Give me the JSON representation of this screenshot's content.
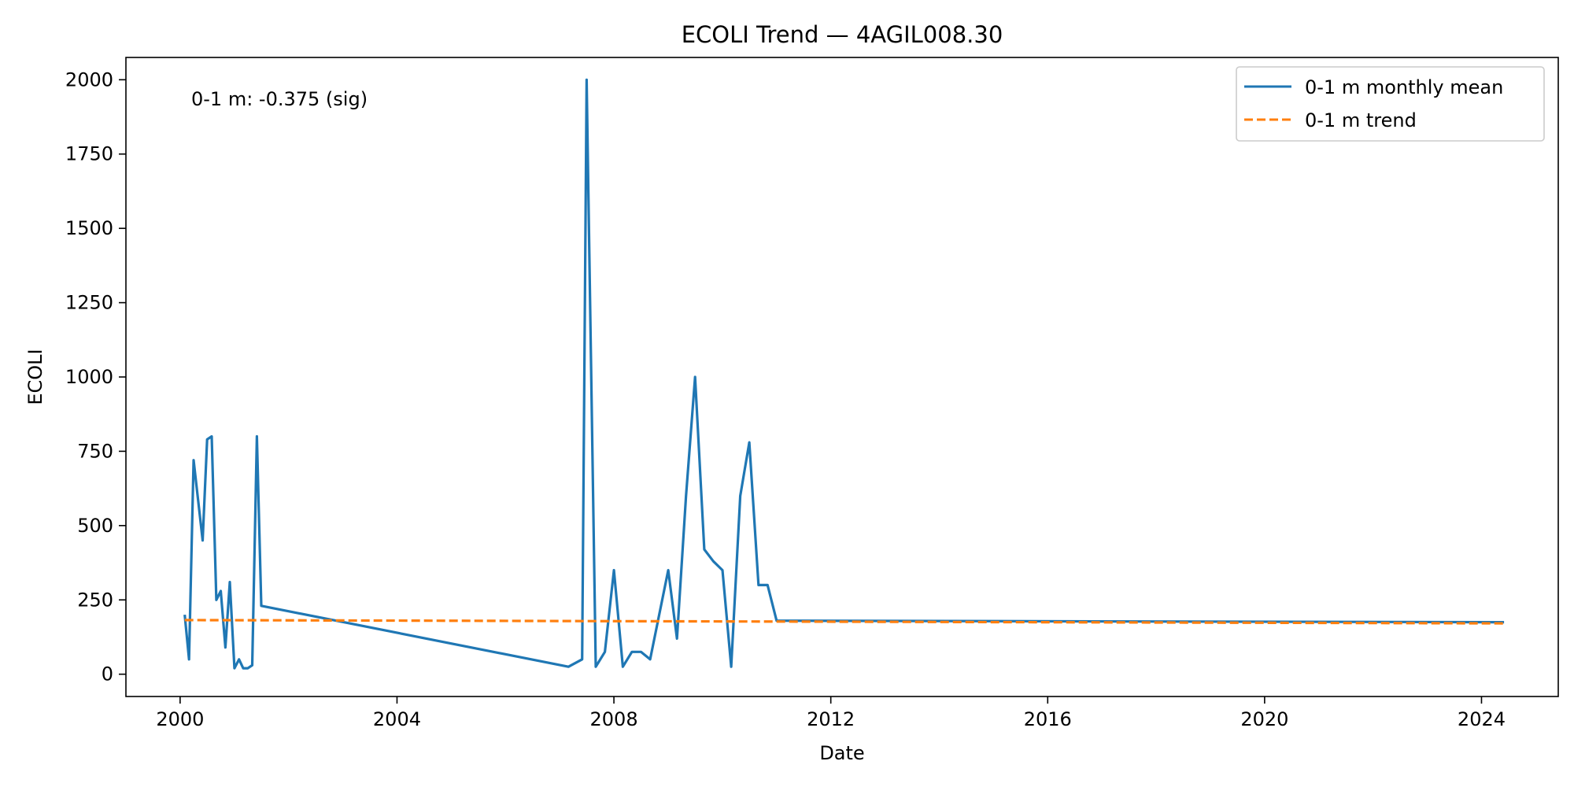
{
  "chart_data": {
    "type": "line",
    "title": "ECOLI Trend — 4AGIL008.30",
    "xlabel": "Date",
    "ylabel": "ECOLI",
    "xlim": [
      "1999-01-01",
      "2025-06-01"
    ],
    "ylim": [
      -75,
      2075
    ],
    "x_ticks": [
      "2000-01-01",
      "2004-01-01",
      "2008-01-01",
      "2012-01-01",
      "2016-01-01",
      "2020-01-01",
      "2024-01-01"
    ],
    "x_tick_labels": [
      "2000",
      "2004",
      "2008",
      "2012",
      "2016",
      "2020",
      "2024"
    ],
    "y_ticks": [
      0,
      250,
      500,
      750,
      1000,
      1250,
      1500,
      1750,
      2000
    ],
    "y_tick_labels": [
      "0",
      "250",
      "500",
      "750",
      "1000",
      "1250",
      "1500",
      "1750",
      "2000"
    ],
    "annotation": "0-1 m: -0.375 (sig)",
    "grid": false,
    "legend_position": "top-right",
    "series": [
      {
        "name": "0-1 m monthly mean",
        "color": "#1f77b4",
        "style": "solid",
        "points": [
          [
            "2000-02-01",
            200
          ],
          [
            "2000-03-01",
            50
          ],
          [
            "2000-04-01",
            720
          ],
          [
            "2000-06-01",
            450
          ],
          [
            "2000-07-01",
            790
          ],
          [
            "2000-08-01",
            800
          ],
          [
            "2000-09-01",
            250
          ],
          [
            "2000-10-01",
            280
          ],
          [
            "2000-11-01",
            90
          ],
          [
            "2000-12-01",
            310
          ],
          [
            "2001-01-01",
            20
          ],
          [
            "2001-02-01",
            50
          ],
          [
            "2001-03-01",
            20
          ],
          [
            "2001-04-01",
            20
          ],
          [
            "2001-05-01",
            30
          ],
          [
            "2001-06-01",
            800
          ],
          [
            "2001-07-01",
            230
          ],
          [
            "2007-03-01",
            25
          ],
          [
            "2007-06-01",
            50
          ],
          [
            "2007-07-01",
            2000
          ],
          [
            "2007-09-01",
            25
          ],
          [
            "2007-11-01",
            75
          ],
          [
            "2008-01-01",
            350
          ],
          [
            "2008-03-01",
            25
          ],
          [
            "2008-05-01",
            75
          ],
          [
            "2008-07-01",
            75
          ],
          [
            "2008-09-01",
            50
          ],
          [
            "2009-01-01",
            350
          ],
          [
            "2009-03-01",
            120
          ],
          [
            "2009-05-01",
            600
          ],
          [
            "2009-07-01",
            1000
          ],
          [
            "2009-09-01",
            420
          ],
          [
            "2009-11-01",
            380
          ],
          [
            "2010-01-01",
            350
          ],
          [
            "2010-03-01",
            25
          ],
          [
            "2010-05-01",
            600
          ],
          [
            "2010-07-01",
            780
          ],
          [
            "2010-09-01",
            300
          ],
          [
            "2010-11-01",
            300
          ],
          [
            "2011-01-01",
            180
          ],
          [
            "2024-06-01",
            175
          ]
        ]
      },
      {
        "name": "0-1 m trend",
        "color": "#ff7f0e",
        "style": "dashed",
        "points": [
          [
            "2000-02-01",
            182
          ],
          [
            "2024-06-01",
            171
          ]
        ]
      }
    ]
  }
}
